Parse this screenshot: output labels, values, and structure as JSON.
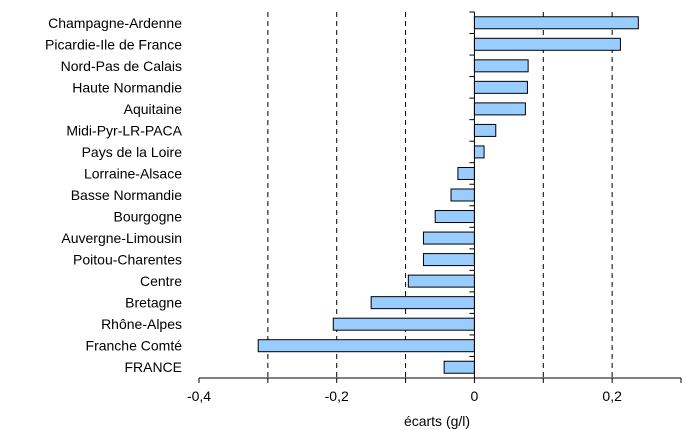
{
  "chart_data": {
    "type": "bar",
    "orientation": "horizontal",
    "categories": [
      "Champagne-Ardenne",
      "Picardie-Ile de France",
      "Nord-Pas de Calais",
      "Haute Normandie",
      "Aquitaine",
      "Midi-Pyr-LR-PACA",
      "Pays de la Loire",
      "Lorraine-Alsace",
      "Basse Normandie",
      "Bourgogne",
      "Auvergne-Limousin",
      "Poitou-Charentes",
      "Centre",
      "Bretagne",
      "Rhône-Alpes",
      "Franche Comté",
      "FRANCE"
    ],
    "values": [
      0.238,
      0.212,
      0.078,
      0.077,
      0.074,
      0.031,
      0.014,
      -0.024,
      -0.034,
      -0.057,
      -0.074,
      -0.074,
      -0.096,
      -0.15,
      -0.205,
      -0.314,
      -0.044
    ],
    "xlabel": "écarts (g/l)",
    "ylabel": "",
    "title": "",
    "xlim": [
      -0.4,
      0.3
    ],
    "x_ticks": [
      -0.4,
      -0.2,
      0,
      0.2
    ],
    "x_tick_labels": [
      "-0,4",
      "-0,2",
      "0",
      "0,2"
    ],
    "dashed_gridlines_x": [
      -0.3,
      -0.2,
      -0.1,
      0.1,
      0.2
    ],
    "grid": "vertical dashed",
    "legend": "none",
    "colors": {
      "bar_fill": "#99CCFF",
      "bar_stroke": "#000000",
      "axis": "#000000",
      "gridline": "#000000"
    }
  }
}
